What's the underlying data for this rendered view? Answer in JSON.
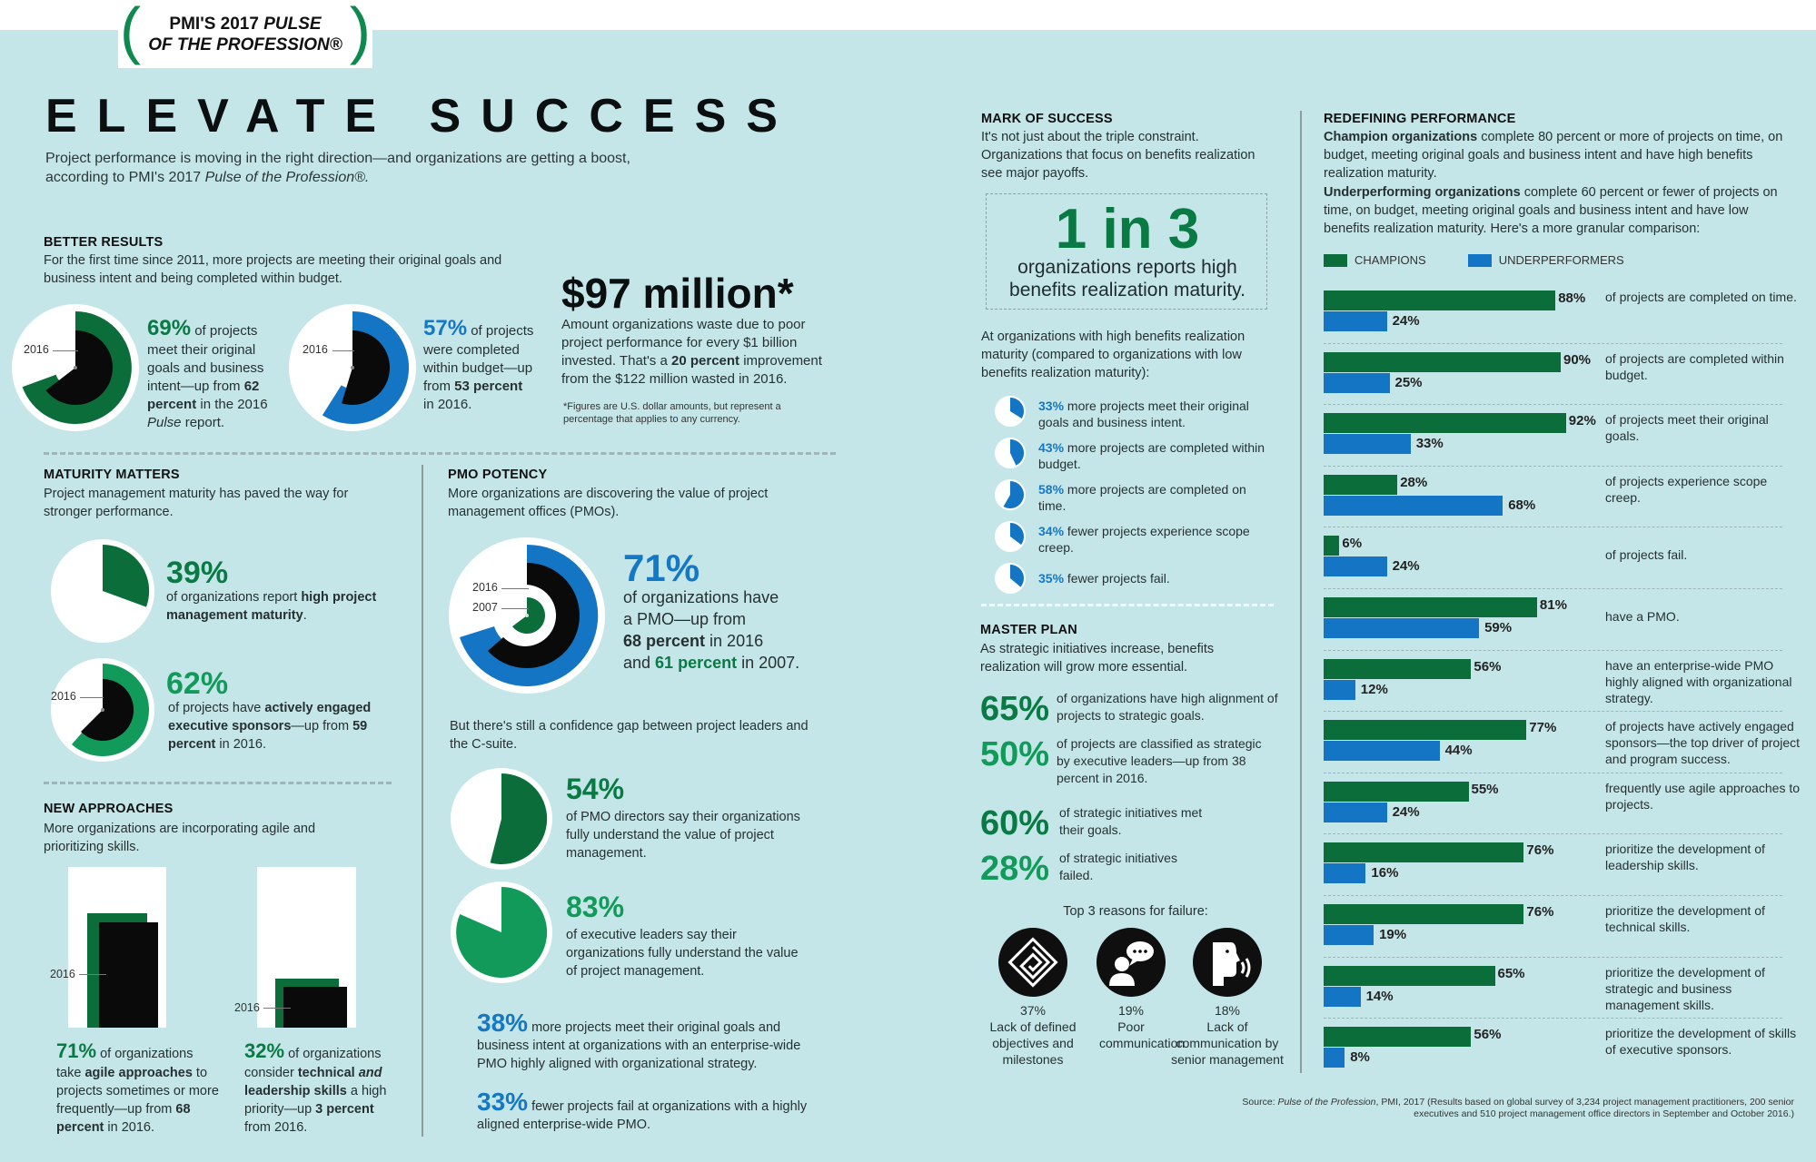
{
  "header": {
    "badge_line1": "PMI'S 2017 ",
    "badge_line1_italic": "PULSE",
    "badge_line2": "OF THE PROFESSION®",
    "title": "ELEVATE SUCCESS",
    "lead_1": "Project performance is moving in the right direction—and organizations are getting a boost,",
    "lead_2": "according to PMI's 2017 ",
    "lead_2_italic": "Pulse of the Profession®."
  },
  "better_results": {
    "heading": "BETTER RESULTS",
    "intro": "For the first time since 2011, more projects are meeting their original goals and business intent and being completed within budget.",
    "goals": {
      "value": "69%",
      "text_a": " of projects meet their original goals and business intent—up from ",
      "bold": "62 percent",
      "text_b": " in the 2016 ",
      "italic": "Pulse",
      "text_c": " report.",
      "label": "2016"
    },
    "budget": {
      "value": "57%",
      "text_a": " of projects were completed within budget—up from ",
      "bold": "53 percent",
      "text_b": " in 2016.",
      "label": "2016"
    },
    "waste": {
      "headline": "$97 million*",
      "text_a": "Amount organizations waste due to poor project performance for every $1 billion invested. That's a ",
      "bold": "20 percent",
      "text_b": " improvement from the $122 million wasted in 2016.",
      "footnote": "*Figures are U.S. dollar amounts, but represent a percentage that applies to any currency."
    }
  },
  "maturity": {
    "heading": "MATURITY MATTERS",
    "intro": "Project management maturity has paved the way for stronger performance.",
    "stat1": {
      "value": "39%",
      "text_a": "of organizations report ",
      "bold": "high project management maturity",
      "text_b": "."
    },
    "stat2": {
      "value": "62%",
      "text_a": "of projects have ",
      "bold": "actively engaged executive sponsors",
      "text_b": "—up from ",
      "bold2": "59 percent",
      "text_c": " in 2016.",
      "label": "2016"
    }
  },
  "new_approaches": {
    "heading": "NEW APPROACHES",
    "intro": "More organizations are incorporating agile and prioritizing skills.",
    "stat1": {
      "value": "71%",
      "text_a": " of organizations take ",
      "bold": "agile approaches",
      "text_b": " to projects sometimes or more frequently—up from ",
      "bold2": "68 percent",
      "text_c": " in 2016.",
      "label": "2016"
    },
    "stat2": {
      "value": "32%",
      "text_a": " of organizations consider ",
      "bold": "technical ",
      "italic": "and",
      "bold2": " leadership skills",
      "text_b": " a high priority—up ",
      "bold3": "3 percent",
      "text_c": " from 2016.",
      "label": "2016"
    }
  },
  "pmo": {
    "heading": "PMO POTENCY",
    "intro": "More organizations are discovering the value of project management offices (PMOs).",
    "main": {
      "value": "71%",
      "line1": "of organizations have",
      "line2": "a PMO—up from",
      "bold": "68 percent",
      "line3": " in 2016",
      "line4a": "and ",
      "green": "61 percent",
      "line4b": " in 2007.",
      "label_2016": "2016",
      "label_2007": "2007"
    },
    "gap": "But there's still a confidence gap between project leaders and the C-suite.",
    "stat54": {
      "value": "54%",
      "text": "of PMO directors say their organizations fully understand the value of project management."
    },
    "stat83": {
      "value": "83%",
      "text": "of executive leaders say their organizations fully understand the value of project management."
    },
    "stat38": {
      "value": "38%",
      "text": " more projects meet their original goals and business intent at organizations with an enterprise-wide PMO highly aligned with organizational strategy."
    },
    "stat33": {
      "value": "33%",
      "text": " fewer projects fail at organizations with a highly aligned enterprise-wide PMO."
    }
  },
  "mark": {
    "heading": "MARK OF SUCCESS",
    "intro": "It's not just about the triple constraint. Organizations that focus on benefits realization see major payoffs.",
    "box_big": "1 in 3",
    "box_text": "organizations reports high benefits realization maturity.",
    "compare_intro": "At organizations with high benefits realization maturity (compared to organizations with low benefits realization maturity):",
    "items": [
      {
        "value": "33%",
        "text": " more projects meet their original goals and business intent.",
        "pct": 33
      },
      {
        "value": "43%",
        "text": " more projects are completed within budget.",
        "pct": 43
      },
      {
        "value": "58%",
        "text": " more projects are completed on time.",
        "pct": 58
      },
      {
        "value": "34%",
        "text": " fewer projects experience scope creep.",
        "pct": 34
      },
      {
        "value": "35%",
        "text": " fewer projects fail.",
        "pct": 35
      }
    ]
  },
  "master_plan": {
    "heading": "MASTER PLAN",
    "intro": "As strategic initiatives increase, benefits realization will grow more essential.",
    "stats": [
      {
        "value": "65%",
        "text": "of organizations have high alignment of projects to strategic goals."
      },
      {
        "value": "50%",
        "text": "of projects are classified as strategic by executive leaders—up from 38 percent in 2016."
      },
      {
        "value": "60%",
        "text": "of strategic initiatives met their goals."
      },
      {
        "value": "28%",
        "text": "of strategic initiatives failed."
      }
    ],
    "reasons_title": "Top 3 reasons for failure:",
    "reasons": [
      {
        "value": "37%",
        "text": "Lack of defined objectives and milestones",
        "icon": "maze-icon"
      },
      {
        "value": "19%",
        "text": "Poor communication",
        "icon": "speech-bubble-icon"
      },
      {
        "value": "18%",
        "text": "Lack of communication by senior management",
        "icon": "speaking-head-icon"
      }
    ]
  },
  "redefining": {
    "heading": "REDEFINING PERFORMANCE",
    "champ_bold": "Champion organizations",
    "champ_text": " complete 80 percent or more of projects on time, on budget, meeting original goals and business intent and have high benefits realization maturity.",
    "under_bold": "Underperforming organizations",
    "under_text": " complete 60 percent or fewer of projects on time, on budget, meeting original goals and business intent and have low benefits realization maturity. Here's a more granular comparison:",
    "legend_champions": "CHAMPIONS",
    "legend_under": "UNDERPERFORMERS",
    "colors": {
      "champions": "#0b6e3a",
      "underperformers": "#1475c5"
    }
  },
  "source": {
    "prefix": "Source: ",
    "italic": "Pulse of the Profession",
    "text": ", PMI, 2017 (Results based on global survey of 3,234 project management practitioners, 200 senior executives and 510 project management office directors in September and October 2016.)"
  },
  "chart_data": [
    {
      "type": "bar",
      "title": "REDEFINING PERFORMANCE",
      "orientation": "horizontal",
      "categories": [
        "of projects are completed on time.",
        "of projects are completed within budget.",
        "of projects meet their original goals.",
        "of projects experience scope creep.",
        "of projects fail.",
        "have a PMO.",
        "have an enterprise-wide PMO highly aligned with organizational strategy.",
        "of projects have actively engaged sponsors—the top driver of project and program success.",
        "frequently use agile approaches to projects.",
        "prioritize the development of leadership skills.",
        "prioritize the development of technical skills.",
        "prioritize the development of strategic and business management skills.",
        "prioritize the development of skills of executive sponsors."
      ],
      "series": [
        {
          "name": "CHAMPIONS",
          "values": [
            88,
            90,
            92,
            28,
            6,
            81,
            56,
            77,
            55,
            76,
            76,
            65,
            56
          ]
        },
        {
          "name": "UNDERPERFORMERS",
          "values": [
            24,
            25,
            33,
            68,
            24,
            59,
            12,
            44,
            24,
            16,
            19,
            14,
            8
          ]
        }
      ],
      "xlim": [
        0,
        100
      ],
      "legend_position": "top",
      "grid": false
    },
    {
      "type": "pie",
      "title": "Better results (donuts)",
      "items": [
        {
          "label": "Projects meet original goals (2017)",
          "value": 69,
          "prev_2016": 62
        },
        {
          "label": "Projects completed within budget (2017)",
          "value": 57,
          "prev_2016": 53
        },
        {
          "label": "High PM maturity",
          "value": 39
        },
        {
          "label": "Actively engaged executive sponsors",
          "value": 62,
          "prev_2016": 59
        },
        {
          "label": "Organizations with a PMO",
          "value": 71,
          "prev_2016": 68,
          "prev_2007": 61
        },
        {
          "label": "PMO directors: org understands value",
          "value": 54
        },
        {
          "label": "Executive leaders: org understands value",
          "value": 83
        }
      ]
    },
    {
      "type": "bar",
      "title": "New approaches",
      "categories": [
        "Agile approaches",
        "Technical and leadership skills high priority"
      ],
      "series": [
        {
          "name": "2017",
          "values": [
            71,
            32
          ]
        },
        {
          "name": "2016",
          "values": [
            68,
            29
          ]
        }
      ]
    }
  ]
}
